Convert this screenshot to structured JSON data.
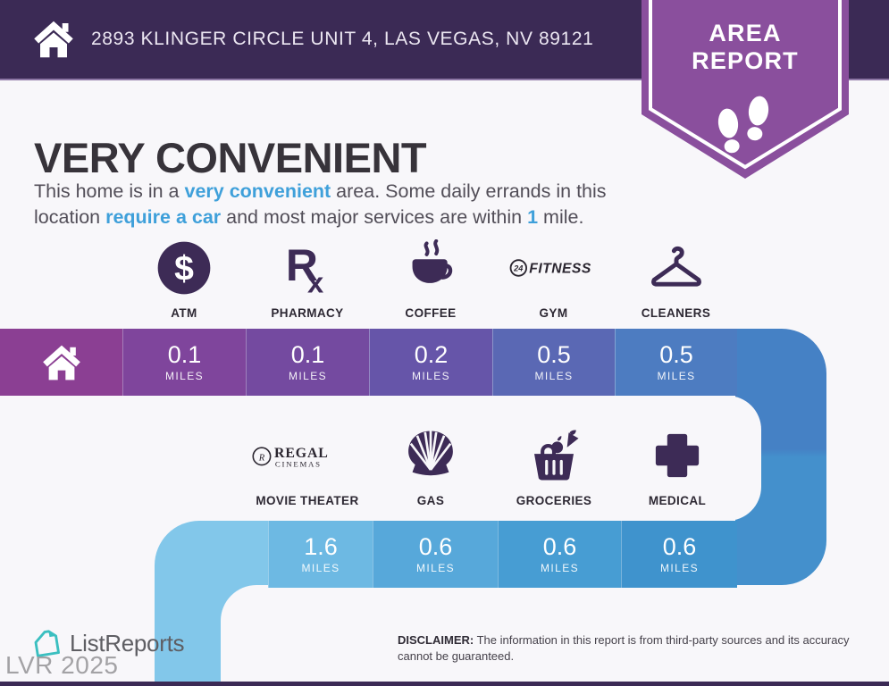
{
  "header": {
    "address": "2893 KLINGER CIRCLE UNIT 4, LAS VEGAS, NV 89121"
  },
  "badge": {
    "line1": "AREA",
    "line2": "REPORT",
    "color": "#8a4f9d"
  },
  "hero": {
    "title": "VERY CONVENIENT",
    "description_segments": [
      {
        "text": "This home is in a "
      },
      {
        "text": "very convenient",
        "highlight": true
      },
      {
        "text": " area. Some daily errands in this"
      },
      {
        "br": true
      },
      {
        "text": "location "
      },
      {
        "text": "require a car",
        "highlight": true
      },
      {
        "text": " and most major services are within "
      },
      {
        "text": "1",
        "highlight": true
      },
      {
        "text": " mile."
      }
    ],
    "highlight_color": "#3fa0da"
  },
  "rows": [
    {
      "name": "row-1",
      "home": {
        "icon": "home-icon",
        "color": "#8b3f93"
      },
      "places": [
        {
          "label": "ATM",
          "icon": "atm-dollar-icon",
          "icon_text": "$",
          "distance": "0.1",
          "unit": "MILES",
          "color": "#7f459c"
        },
        {
          "label": "PHARMACY",
          "icon": "rx-icon",
          "icon_text": "Rx",
          "distance": "0.1",
          "unit": "MILES",
          "color": "#744aa0"
        },
        {
          "label": "COFFEE",
          "icon": "coffee-cup-icon",
          "distance": "0.2",
          "unit": "MILES",
          "color": "#6655a9"
        },
        {
          "label": "GYM",
          "icon": "24-hour-fitness-logo",
          "icon_text": "24 FITNESS",
          "distance": "0.5",
          "unit": "MILES",
          "color": "#5a68b4"
        },
        {
          "label": "CLEANERS",
          "icon": "hanger-icon",
          "distance": "0.5",
          "unit": "MILES",
          "color": "#4d7cc1"
        }
      ],
      "connector_colors": [
        "#4581c5",
        "#4490cc"
      ]
    },
    {
      "name": "row-2",
      "places": [
        {
          "label": "MOVIE THEATER",
          "icon": "regal-cinemas-logo",
          "icon_text": "REGAL CINEMAS",
          "distance": "1.6",
          "unit": "MILES",
          "color": "#6db9e3"
        },
        {
          "label": "GAS",
          "icon": "shell-gas-icon",
          "distance": "0.6",
          "unit": "MILES",
          "color": "#57a8da"
        },
        {
          "label": "GROCERIES",
          "icon": "grocery-basket-icon",
          "distance": "0.6",
          "unit": "MILES",
          "color": "#479dd3"
        },
        {
          "label": "MEDICAL",
          "icon": "medical-cross-icon",
          "distance": "0.6",
          "unit": "MILES",
          "color": "#3f93cd"
        }
      ],
      "corner_color": "#82c7ea"
    }
  ],
  "footer": {
    "brand": "ListReports",
    "disclaimer_label": "DISCLAIMER:",
    "disclaimer_text": " The information in this report is from third-party sources and its accuracy cannot be guaranteed.",
    "watermark": "LVR 2025"
  },
  "colors": {
    "header_bg": "#3b2a55",
    "page_bg": "#f8f7fa",
    "icon": "#3d2b56",
    "badge": "#8a4f9d",
    "highlight": "#3fa0da",
    "brand_teal": "#3bbfc0"
  }
}
